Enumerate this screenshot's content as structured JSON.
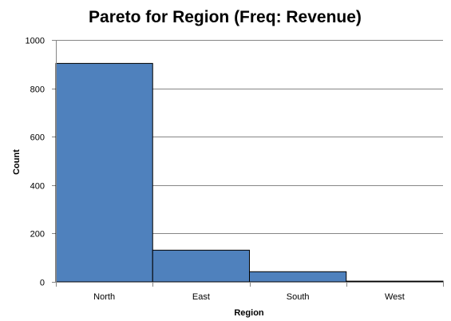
{
  "chart_data": {
    "type": "bar",
    "title": "Pareto for Region (Freq: Revenue)",
    "xlabel": "Region",
    "ylabel": "Count",
    "categories": [
      "North",
      "East",
      "South",
      "West"
    ],
    "values": [
      903,
      131,
      42,
      3
    ],
    "ylim": [
      0,
      1000
    ],
    "yticks": [
      0,
      200,
      400,
      600,
      800,
      1000
    ],
    "grid": true,
    "bar_color": "#4F81BD",
    "bar_stroke": "#000000",
    "gridline_color": "#868686"
  }
}
